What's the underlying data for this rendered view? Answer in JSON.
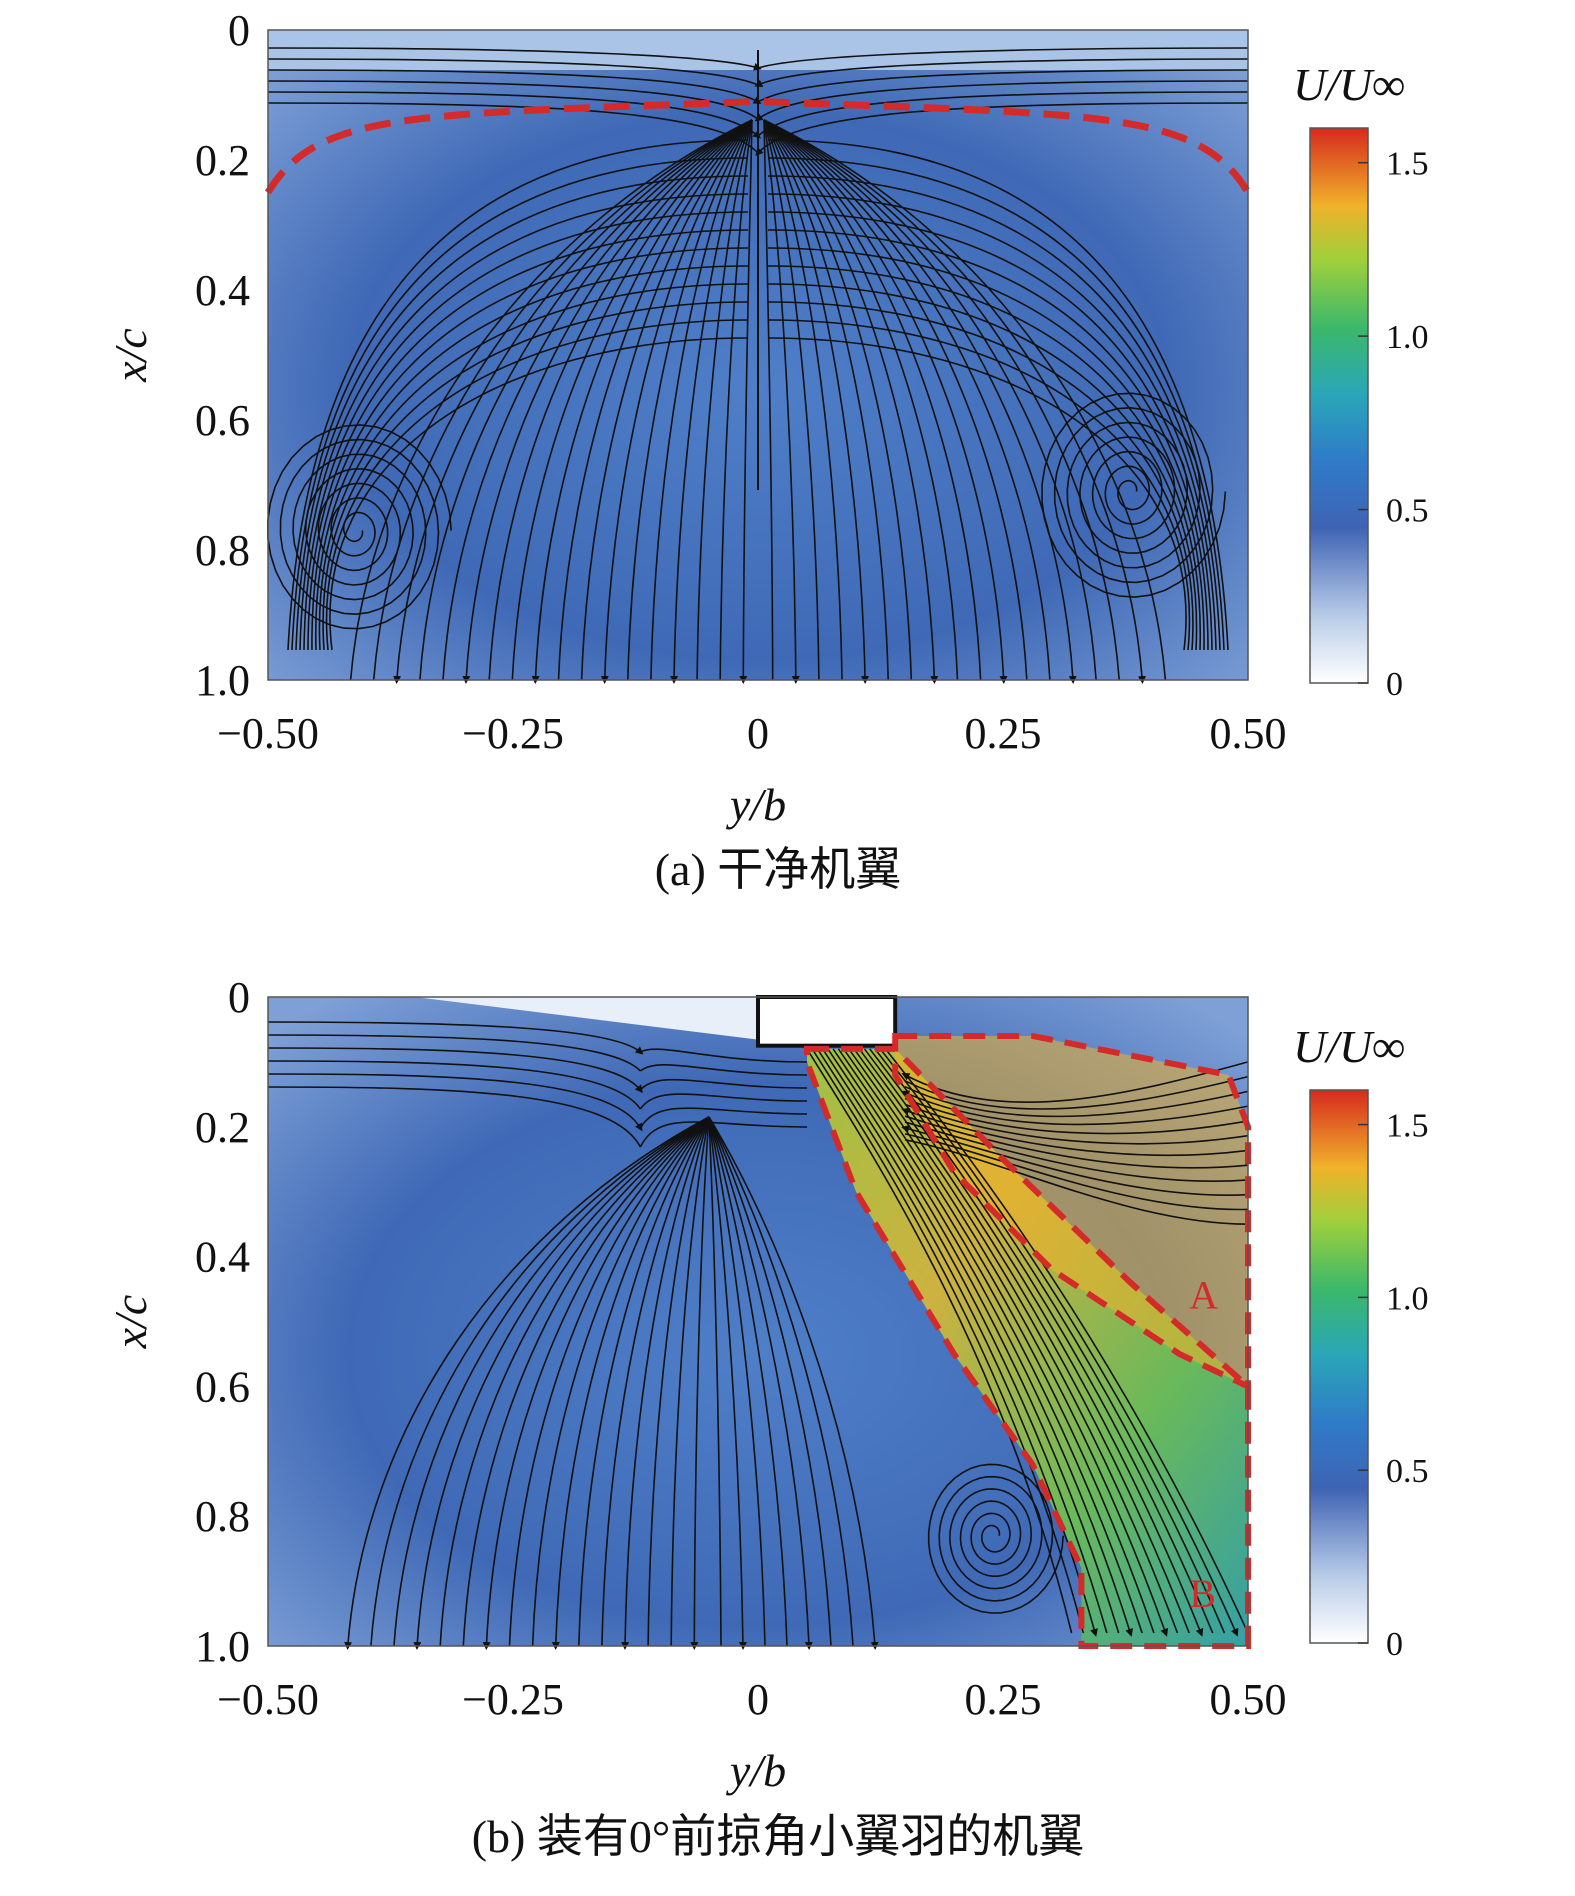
{
  "chart_data": [
    {
      "type": "heatmap",
      "subtype": "streamline velocity contour",
      "caption": "(a) 干净机翼",
      "xlabel": "y/b",
      "ylabel": "x/c",
      "xlim": [
        -0.5,
        0.5
      ],
      "ylim": [
        0,
        1.0
      ],
      "y_inverted": true,
      "xticks": [
        "−0.50",
        "−0.25",
        "0",
        "0.25",
        "0.50"
      ],
      "yticks": [
        "0",
        "0.2",
        "0.4",
        "0.6",
        "0.8",
        "1.0"
      ],
      "colorbar": {
        "title": "U/U∞",
        "range": [
          0,
          1.6
        ],
        "ticks": [
          "0",
          "0.5",
          "1.0",
          "1.5"
        ]
      },
      "dominant_velocity": 0.4,
      "vortex_foci": [
        {
          "y": -0.41,
          "x": 0.77
        },
        {
          "y": 0.38,
          "x": 0.71
        }
      ],
      "dashed_boundary": {
        "color": "#d42a2a",
        "points": [
          [
            -0.5,
            0.25
          ],
          [
            -0.45,
            0.17
          ],
          [
            -0.35,
            0.13
          ],
          [
            0,
            0.11
          ],
          [
            0.35,
            0.13
          ],
          [
            0.45,
            0.17
          ],
          [
            0.5,
            0.25
          ]
        ]
      }
    },
    {
      "type": "heatmap",
      "subtype": "streamline velocity contour",
      "caption": "(b) 装有0°前掠角小翼羽的机翼",
      "xlabel": "y/b",
      "ylabel": "x/c",
      "xlim": [
        -0.5,
        0.5
      ],
      "ylim": [
        0,
        1.0
      ],
      "y_inverted": true,
      "xticks": [
        "−0.50",
        "−0.25",
        "0",
        "0.25",
        "0.50"
      ],
      "yticks": [
        "0",
        "0.2",
        "0.4",
        "0.6",
        "0.8",
        "1.0"
      ],
      "colorbar": {
        "title": "U/U∞",
        "range": [
          0,
          1.6
        ],
        "ticks": [
          "0",
          "0.5",
          "1.0",
          "1.5"
        ]
      },
      "dominant_velocity": 0.4,
      "high_speed_region_velocity": [
        1.0,
        1.4
      ],
      "alula_block": {
        "y": [
          0.0,
          0.14
        ],
        "x": [
          0.0,
          0.075
        ]
      },
      "vortex_foci": [
        {
          "y": 0.24,
          "x": 0.83
        }
      ],
      "regions": [
        {
          "label": "A",
          "color": "#d42a2a",
          "points": [
            [
              0.14,
              0.06
            ],
            [
              0.28,
              0.06
            ],
            [
              0.48,
              0.12
            ],
            [
              0.5,
              0.2
            ],
            [
              0.5,
              0.6
            ],
            [
              0.43,
              0.55
            ],
            [
              0.3,
              0.42
            ],
            [
              0.2,
              0.27
            ],
            [
              0.14,
              0.12
            ]
          ]
        },
        {
          "label": "B",
          "color": "#d42a2a",
          "points": [
            [
              0.05,
              0.08
            ],
            [
              0.14,
              0.08
            ],
            [
              0.25,
              0.25
            ],
            [
              0.38,
              0.44
            ],
            [
              0.5,
              0.6
            ],
            [
              0.5,
              1.0
            ],
            [
              0.33,
              1.0
            ],
            [
              0.33,
              0.88
            ],
            [
              0.28,
              0.72
            ],
            [
              0.2,
              0.55
            ],
            [
              0.1,
              0.3
            ],
            [
              0.05,
              0.1
            ]
          ]
        }
      ]
    }
  ]
}
